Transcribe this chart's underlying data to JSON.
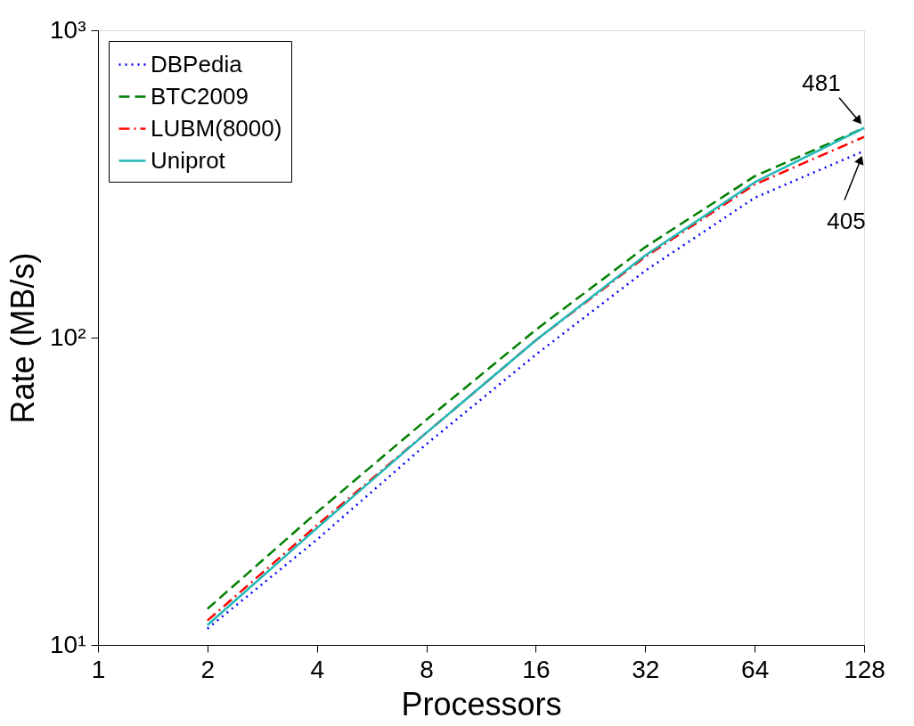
{
  "chart_data": {
    "type": "line",
    "xlabel": "Processors",
    "ylabel": "Rate (MB/s)",
    "x": [
      2,
      4,
      8,
      16,
      32,
      64,
      128
    ],
    "xlim": [
      1,
      128
    ],
    "xticks": [
      1,
      2,
      4,
      8,
      16,
      32,
      64,
      128
    ],
    "ylim": [
      10,
      1000
    ],
    "yticks": [
      {
        "value": 10,
        "label": "10¹"
      },
      {
        "value": 100,
        "label": "10²"
      },
      {
        "value": 1000,
        "label": "10³"
      }
    ],
    "log": "xy",
    "grid": false,
    "legend": "top left",
    "marker": "none",
    "series": [
      {
        "name": "DBPedia",
        "color": "#0000ff",
        "line_style": "dotted",
        "values": [
          11.3,
          22,
          45,
          88,
          165,
          285,
          405
        ]
      },
      {
        "name": "BTC2009",
        "color": "#007f00",
        "line_style": "dashed",
        "values": [
          13.1,
          27,
          54,
          106,
          197,
          335,
          481
        ]
      },
      {
        "name": "LUBM(8000)",
        "color": "#ff0000",
        "line_style": "dashdot",
        "values": [
          12,
          24.5,
          49,
          98,
          183,
          315,
          450
        ]
      },
      {
        "name": "Uniprot",
        "color": "#20b8b8",
        "line_style": "solid",
        "values": [
          11.6,
          24,
          49,
          98,
          185,
          320,
          481
        ]
      }
    ],
    "annotations": [
      {
        "text": "481",
        "x": 128,
        "y": 481
      },
      {
        "text": "405",
        "x": 128,
        "y": 405
      }
    ]
  }
}
